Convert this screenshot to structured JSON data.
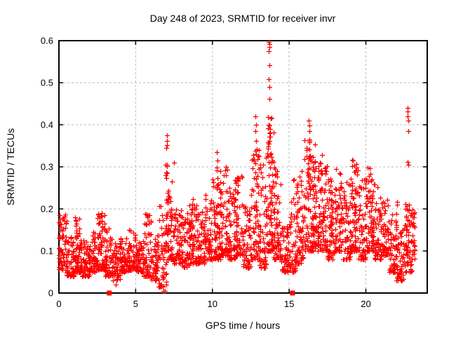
{
  "chart_data": {
    "type": "scatter",
    "title": "Day 248 of 2023, SRMTID for receiver invr",
    "xlabel": "GPS time / hours",
    "ylabel": "SRMTID / TECUs",
    "xlim": [
      0,
      24
    ],
    "ylim": [
      0,
      0.6
    ],
    "xticks": [
      0,
      5,
      10,
      15,
      20
    ],
    "xtick_labels": [
      "0",
      "5",
      "10",
      "15",
      "20"
    ],
    "yticks": [
      0,
      0.1,
      0.2,
      0.3,
      0.4,
      0.5,
      0.6
    ],
    "ytick_labels": [
      "0",
      "0.1",
      "0.2",
      "0.3",
      "0.4",
      "0.5",
      "0.6"
    ],
    "grid": {
      "show_x": true,
      "show_y": true,
      "color": "#bbbbbb",
      "dash": [
        3,
        3
      ]
    },
    "legend": "none",
    "marker": {
      "type": "plus",
      "color": "#ff0000",
      "size": 7
    },
    "square_marker": {
      "type": "filled-square",
      "color": "#ff0000",
      "size": 7
    },
    "points_model": {
      "band_format": [
        "x_start",
        "x_end",
        "n_points",
        "y_min",
        "y_max",
        "skew_pow"
      ],
      "bands": [
        [
          0.0,
          0.5,
          55,
          0.055,
          0.19,
          1.6
        ],
        [
          0.5,
          1.0,
          55,
          0.04,
          0.135,
          1.8
        ],
        [
          1.0,
          1.5,
          60,
          0.05,
          0.18,
          2.0
        ],
        [
          1.5,
          2.0,
          55,
          0.04,
          0.125,
          1.8
        ],
        [
          2.0,
          2.5,
          55,
          0.05,
          0.145,
          1.8
        ],
        [
          2.5,
          3.0,
          60,
          0.055,
          0.19,
          2.0
        ],
        [
          3.0,
          3.5,
          55,
          0.04,
          0.155,
          2.0
        ],
        [
          3.5,
          4.0,
          50,
          0.03,
          0.12,
          1.6
        ],
        [
          4.0,
          4.5,
          55,
          0.05,
          0.13,
          1.6
        ],
        [
          4.5,
          5.0,
          55,
          0.055,
          0.15,
          1.8
        ],
        [
          5.0,
          5.5,
          55,
          0.05,
          0.125,
          1.6
        ],
        [
          5.5,
          6.0,
          55,
          0.04,
          0.19,
          2.4
        ],
        [
          6.0,
          6.5,
          50,
          0.03,
          0.14,
          1.8
        ],
        [
          6.5,
          7.0,
          50,
          0.015,
          0.21,
          2.0
        ],
        [
          7.0,
          7.5,
          60,
          0.08,
          0.31,
          2.6
        ],
        [
          7.5,
          8.0,
          55,
          0.07,
          0.2,
          2.0
        ],
        [
          8.0,
          8.5,
          55,
          0.06,
          0.19,
          1.8
        ],
        [
          8.5,
          9.0,
          60,
          0.07,
          0.225,
          2.0
        ],
        [
          9.0,
          9.5,
          55,
          0.07,
          0.2,
          1.8
        ],
        [
          9.5,
          10.0,
          55,
          0.08,
          0.24,
          2.0
        ],
        [
          10.0,
          10.5,
          60,
          0.08,
          0.3,
          2.2
        ],
        [
          10.5,
          11.0,
          60,
          0.09,
          0.3,
          2.2
        ],
        [
          11.0,
          11.5,
          55,
          0.08,
          0.25,
          2.0
        ],
        [
          11.5,
          12.0,
          60,
          0.09,
          0.28,
          2.2
        ],
        [
          12.0,
          12.5,
          55,
          0.06,
          0.21,
          1.8
        ],
        [
          12.5,
          13.0,
          60,
          0.08,
          0.36,
          2.4
        ],
        [
          13.0,
          13.5,
          60,
          0.06,
          0.35,
          2.2
        ],
        [
          13.5,
          14.0,
          65,
          0.1,
          0.42,
          2.2
        ],
        [
          14.0,
          14.5,
          55,
          0.08,
          0.3,
          2.2
        ],
        [
          14.5,
          15.0,
          50,
          0.05,
          0.16,
          1.6
        ],
        [
          15.0,
          15.5,
          50,
          0.05,
          0.27,
          2.2
        ],
        [
          15.5,
          16.0,
          55,
          0.07,
          0.3,
          2.2
        ],
        [
          16.0,
          16.5,
          60,
          0.1,
          0.38,
          2.2
        ],
        [
          16.5,
          17.0,
          65,
          0.1,
          0.37,
          2.0
        ],
        [
          17.0,
          17.5,
          60,
          0.1,
          0.33,
          2.0
        ],
        [
          17.5,
          18.0,
          55,
          0.08,
          0.28,
          2.0
        ],
        [
          18.0,
          18.5,
          55,
          0.1,
          0.3,
          2.0
        ],
        [
          18.5,
          19.0,
          55,
          0.08,
          0.27,
          2.0
        ],
        [
          19.0,
          19.5,
          60,
          0.1,
          0.32,
          2.2
        ],
        [
          19.5,
          20.0,
          55,
          0.08,
          0.28,
          2.0
        ],
        [
          20.0,
          20.5,
          60,
          0.1,
          0.31,
          2.0
        ],
        [
          20.5,
          21.0,
          55,
          0.08,
          0.26,
          2.0
        ],
        [
          21.0,
          21.5,
          50,
          0.09,
          0.23,
          1.8
        ],
        [
          21.5,
          22.0,
          50,
          0.05,
          0.19,
          1.8
        ],
        [
          22.0,
          22.5,
          45,
          0.03,
          0.16,
          1.8
        ],
        [
          22.5,
          23.0,
          50,
          0.05,
          0.22,
          1.8
        ],
        [
          23.0,
          23.2,
          25,
          0.08,
          0.2,
          1.6
        ]
      ],
      "column_format": [
        "x_center",
        "y_low",
        "y_high",
        "n_points"
      ],
      "columns": [
        [
          0.05,
          0.07,
          0.19,
          12
        ],
        [
          1.15,
          0.08,
          0.175,
          8
        ],
        [
          2.6,
          0.08,
          0.19,
          8
        ],
        [
          5.85,
          0.1,
          0.19,
          6
        ],
        [
          7.02,
          0.1,
          0.31,
          14
        ],
        [
          7.1,
          0.12,
          0.26,
          8
        ],
        [
          8.55,
          0.1,
          0.22,
          8
        ],
        [
          10.3,
          0.12,
          0.3,
          10
        ],
        [
          10.55,
          0.15,
          0.27,
          8
        ],
        [
          11.5,
          0.12,
          0.27,
          8
        ],
        [
          12.85,
          0.15,
          0.38,
          12
        ],
        [
          13.7,
          0.15,
          0.42,
          16
        ],
        [
          13.85,
          0.12,
          0.35,
          10
        ],
        [
          14.2,
          0.1,
          0.3,
          8
        ],
        [
          15.5,
          0.1,
          0.27,
          8
        ],
        [
          16.3,
          0.15,
          0.4,
          14
        ],
        [
          16.6,
          0.12,
          0.35,
          10
        ],
        [
          17.1,
          0.12,
          0.33,
          10
        ],
        [
          17.75,
          0.12,
          0.29,
          8
        ],
        [
          18.4,
          0.1,
          0.27,
          8
        ],
        [
          19.3,
          0.12,
          0.33,
          10
        ],
        [
          20.3,
          0.12,
          0.3,
          10
        ],
        [
          22.0,
          0.08,
          0.22,
          8
        ],
        [
          22.75,
          0.1,
          0.21,
          8
        ]
      ],
      "notable_points": [
        [
          13.68,
          0.597
        ],
        [
          13.7,
          0.592
        ],
        [
          13.72,
          0.585
        ],
        [
          13.69,
          0.575
        ],
        [
          13.71,
          0.542
        ],
        [
          13.68,
          0.508
        ],
        [
          13.73,
          0.49
        ],
        [
          13.7,
          0.462
        ],
        [
          13.65,
          0.4
        ],
        [
          12.82,
          0.42
        ],
        [
          12.85,
          0.4
        ],
        [
          12.8,
          0.385
        ],
        [
          7.02,
          0.375
        ],
        [
          7.05,
          0.362
        ],
        [
          7.03,
          0.352
        ],
        [
          7.0,
          0.345
        ],
        [
          7.04,
          0.305
        ],
        [
          10.28,
          0.335
        ],
        [
          10.32,
          0.315
        ],
        [
          10.3,
          0.298
        ],
        [
          16.28,
          0.41
        ],
        [
          16.32,
          0.398
        ],
        [
          16.3,
          0.385
        ],
        [
          22.72,
          0.44
        ],
        [
          22.74,
          0.432
        ],
        [
          22.73,
          0.42
        ],
        [
          22.75,
          0.41
        ],
        [
          22.76,
          0.385
        ],
        [
          22.74,
          0.312
        ],
        [
          22.77,
          0.305
        ],
        [
          6.82,
          0.005
        ],
        [
          6.88,
          0.005
        ],
        [
          3.7,
          0.02
        ],
        [
          22.2,
          0.035
        ],
        [
          22.3,
          0.03
        ]
      ],
      "squares_at_zero": [
        [
          3.28,
          0
        ],
        [
          15.22,
          0
        ]
      ]
    }
  }
}
